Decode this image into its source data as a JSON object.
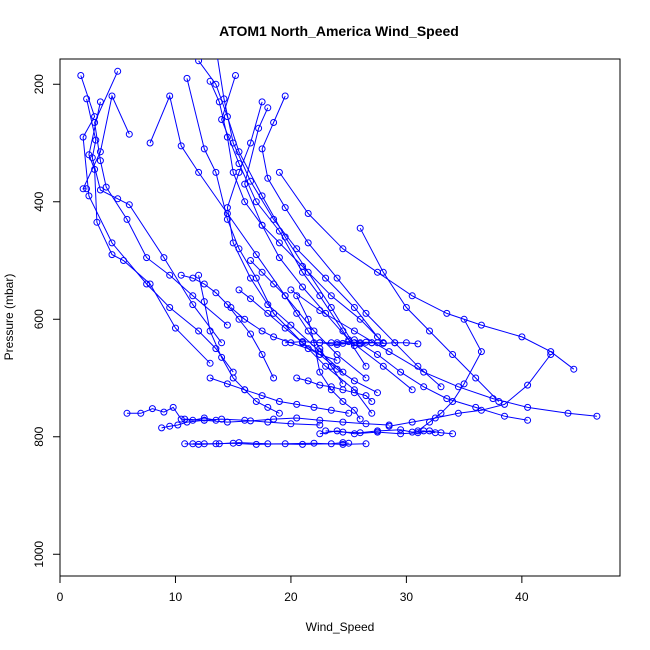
{
  "chart_data": {
    "type": "scatter",
    "title": "ATOM1 North_America Wind_Speed",
    "xlabel": "Wind_Speed",
    "ylabel": "Pressure (mbar)",
    "xlim": [
      0,
      48.5
    ],
    "ylim": [
      1037,
      157
    ],
    "y_reversed": true,
    "x_ticks": [
      0,
      10,
      20,
      30,
      40
    ],
    "y_ticks": [
      200,
      400,
      600,
      800,
      1000
    ],
    "grid": false,
    "series_color": "#0000ff",
    "marker": "open-circle",
    "connected": true,
    "series": [
      {
        "x": [
          1.8,
          3.0,
          2.0,
          2.5,
          4.5,
          7.5,
          9.5,
          12.0,
          13.5,
          15.0
        ],
        "y": [
          185,
          255,
          290,
          390,
          470,
          540,
          580,
          620,
          650,
          690
        ]
      },
      {
        "x": [
          2.3,
          3.1,
          2.8,
          3.5,
          5.0,
          6.0,
          9.0,
          11.5,
          14.0
        ],
        "y": [
          225,
          295,
          325,
          380,
          395,
          405,
          495,
          575,
          640
        ]
      },
      {
        "x": [
          3.5,
          2.5,
          3.0,
          3.2,
          4.5,
          5.5,
          7.8,
          10.0,
          13.0
        ],
        "y": [
          230,
          320,
          345,
          435,
          490,
          500,
          540,
          615,
          675
        ]
      },
      {
        "x": [
          6.0,
          4.5,
          3.5,
          2.0,
          2.3
        ],
        "y": [
          285,
          220,
          315,
          378,
          378
        ]
      },
      {
        "x": [
          5.0,
          3.0,
          3.5,
          4.0,
          5.8,
          7.5,
          9.5,
          11.5,
          14.5
        ],
        "y": [
          178,
          265,
          330,
          375,
          430,
          495,
          525,
          560,
          610
        ]
      },
      {
        "x": [
          7.8,
          9.5,
          10.5,
          12.0,
          14.5,
          17.0,
          19.5,
          22.0,
          24.0,
          26.5
        ],
        "y": [
          300,
          220,
          305,
          350,
          420,
          490,
          560,
          620,
          660,
          700
        ]
      },
      {
        "x": [
          11.0,
          12.5,
          13.5,
          14.5,
          15.5,
          17.0,
          18.5,
          21.0,
          23.0,
          25.5,
          27.0
        ],
        "y": [
          190,
          310,
          350,
          430,
          480,
          530,
          590,
          640,
          680,
          720,
          760
        ]
      },
      {
        "x": [
          13.0,
          13.8,
          14.5,
          15.0,
          16.0,
          17.5,
          19.0,
          21.0,
          23.5,
          26.0,
          28.0
        ],
        "y": [
          195,
          230,
          290,
          350,
          400,
          440,
          470,
          510,
          560,
          600,
          640
        ]
      },
      {
        "x": [
          13.2,
          14.2,
          15.0,
          16.5,
          18.5,
          20.5,
          23.0,
          25.5,
          27.5
        ],
        "y": [
          100,
          225,
          300,
          365,
          430,
          480,
          530,
          580,
          630
        ]
      },
      {
        "x": [
          15.2,
          14.0,
          15.5,
          17.0,
          19.0,
          21.0,
          22.5,
          24.5,
          26.5
        ],
        "y": [
          185,
          260,
          335,
          400,
          450,
          520,
          560,
          620,
          680
        ]
      },
      {
        "x": [
          17.5,
          16.5,
          15.5,
          14.5,
          15.0,
          16.5,
          18.0,
          20.0,
          22.5,
          24.5
        ],
        "y": [
          230,
          300,
          350,
          410,
          470,
          530,
          575,
          610,
          655,
          690
        ]
      },
      {
        "x": [
          18.0,
          17.2,
          16.0,
          17.5,
          19.0,
          21.0,
          23.0,
          25.0,
          28.0,
          30.5
        ],
        "y": [
          240,
          275,
          370,
          440,
          495,
          545,
          590,
          635,
          680,
          720
        ]
      },
      {
        "x": [
          19.5,
          18.5,
          17.5,
          18.0,
          19.5,
          21.5,
          24.0,
          26.5,
          29.0,
          31.0,
          33.0
        ],
        "y": [
          220,
          265,
          310,
          360,
          410,
          470,
          530,
          590,
          640,
          680,
          715
        ]
      },
      {
        "x": [
          12.0,
          13.5,
          14.5,
          15.5,
          17.5,
          19.5,
          21.5,
          23.5,
          25.5
        ],
        "y": [
          160,
          200,
          255,
          315,
          390,
          460,
          520,
          580,
          645
        ]
      },
      {
        "x": [
          19.0,
          21.5,
          24.5,
          27.5,
          30.5,
          33.5,
          36.5,
          40.0,
          42.5,
          44.5
        ],
        "y": [
          350,
          420,
          480,
          520,
          560,
          590,
          610,
          630,
          655,
          685
        ]
      },
      {
        "x": [
          20.0,
          22.5,
          25.5,
          28.5,
          31.5,
          34.5,
          37.5,
          40.5,
          44.0,
          46.5
        ],
        "y": [
          550,
          585,
          620,
          655,
          690,
          715,
          735,
          750,
          760,
          765
        ]
      },
      {
        "x": [
          26.0,
          28.0,
          30.0,
          32.0,
          34.0,
          36.0,
          38.0
        ],
        "y": [
          445,
          520,
          580,
          620,
          660,
          700,
          740
        ]
      },
      {
        "x": [
          25.5,
          27.5,
          29.5,
          31.5,
          33.5,
          36.0,
          38.5,
          40.5
        ],
        "y": [
          635,
          660,
          690,
          715,
          735,
          750,
          765,
          772
        ]
      },
      {
        "x": [
          35.0,
          36.5,
          35.0,
          34.0,
          33.0,
          32.0,
          31.0
        ],
        "y": [
          600,
          655,
          710,
          740,
          760,
          775,
          790
        ]
      },
      {
        "x": [
          42.5,
          40.5,
          38.5,
          36.5,
          34.5,
          32.5,
          30.5,
          28.5
        ],
        "y": [
          660,
          712,
          745,
          755,
          760,
          768,
          775,
          782
        ]
      },
      {
        "x": [
          10.8,
          12.5,
          14.5,
          16.5,
          18.5,
          20.5,
          22.5,
          24.5,
          26.5,
          28.5
        ],
        "y": [
          770,
          772,
          775,
          773,
          770,
          768,
          772,
          775,
          778,
          780
        ]
      },
      {
        "x": [
          8.8,
          9.5,
          10.2,
          11.0,
          12.5,
          14.0,
          16.0,
          18.0,
          20.0,
          22.5
        ],
        "y": [
          785,
          782,
          780,
          775,
          772,
          770,
          772,
          775,
          778,
          780
        ]
      },
      {
        "x": [
          5.8,
          7.0,
          8.0,
          9.0,
          9.8,
          10.5,
          11.5,
          12.5,
          13.5
        ],
        "y": [
          760,
          760,
          752,
          758,
          750,
          770,
          772,
          768,
          772
        ]
      },
      {
        "x": [
          10.8,
          12.0,
          13.5,
          15.0,
          17.0,
          19.5,
          22.0,
          24.5,
          26.5
        ],
        "y": [
          812,
          813,
          812,
          811,
          813,
          812,
          811,
          813,
          812
        ]
      },
      {
        "x": [
          11.5,
          12.5,
          13.8,
          15.5,
          18.0,
          21.0,
          23.5,
          24.5,
          25.0
        ],
        "y": [
          812,
          812,
          812,
          810,
          812,
          813,
          812,
          810,
          811
        ]
      },
      {
        "x": [
          22.5,
          24.0,
          25.5,
          27.5,
          29.5,
          31.0,
          32.0,
          33.0,
          34.0
        ],
        "y": [
          795,
          790,
          795,
          792,
          795,
          793,
          790,
          793,
          795
        ]
      },
      {
        "x": [
          23.0,
          24.5,
          26.0,
          27.5,
          29.5,
          30.5,
          31.5,
          32.5
        ],
        "y": [
          790,
          792,
          793,
          790,
          788,
          792,
          790,
          793
        ]
      },
      {
        "x": [
          24.0,
          25.0,
          26.0,
          27.0,
          28.0,
          29.0,
          30.0,
          31.0
        ],
        "y": [
          640,
          638,
          640,
          640,
          641,
          640,
          640,
          642
        ]
      },
      {
        "x": [
          22.5,
          23.5,
          24.5,
          25.5,
          26.5,
          27.5,
          28.0
        ],
        "y": [
          640,
          640,
          641,
          640,
          639,
          640,
          640
        ]
      },
      {
        "x": [
          19.5,
          21.0,
          22.5,
          24.0,
          25.5,
          26.0,
          27.0
        ],
        "y": [
          640,
          638,
          640,
          643,
          640,
          642,
          640
        ]
      },
      {
        "x": [
          14.8,
          16.0,
          17.5,
          18.5,
          20.0,
          21.5,
          22.5,
          24.0
        ],
        "y": [
          580,
          600,
          620,
          630,
          640,
          650,
          660,
          670
        ]
      },
      {
        "x": [
          15.5,
          16.5,
          18.0,
          19.5,
          21.0,
          22.5,
          24.0,
          25.5,
          27.5
        ],
        "y": [
          550,
          565,
          590,
          615,
          640,
          660,
          685,
          705,
          725
        ]
      },
      {
        "x": [
          10.5,
          11.5,
          12.5,
          13.5,
          14.5,
          15.5,
          16.5,
          17.5,
          18.5
        ],
        "y": [
          525,
          530,
          540,
          555,
          575,
          600,
          625,
          660,
          700
        ]
      },
      {
        "x": [
          12.0,
          12.5,
          13.0,
          14.0,
          15.0,
          16.0,
          17.0,
          18.0,
          19.0
        ],
        "y": [
          525,
          570,
          620,
          665,
          700,
          720,
          740,
          750,
          760
        ]
      },
      {
        "x": [
          16.5,
          17.5,
          18.5,
          19.5,
          20.5,
          21.5,
          22.5,
          23.5,
          24.5
        ],
        "y": [
          500,
          520,
          540,
          560,
          590,
          620,
          650,
          680,
          710
        ]
      },
      {
        "x": [
          20.5,
          21.5,
          22.5,
          23.5,
          24.5,
          25.5,
          26.5,
          27.0
        ],
        "y": [
          700,
          705,
          712,
          715,
          720,
          725,
          730,
          740
        ]
      },
      {
        "x": [
          13.0,
          14.5,
          16.0,
          17.5,
          19.0,
          20.5,
          22.0,
          23.5,
          25.0
        ],
        "y": [
          700,
          710,
          720,
          730,
          740,
          745,
          750,
          755,
          760
        ]
      },
      {
        "x": [
          20.5,
          21.5,
          22.0,
          22.5,
          23.5,
          24.5,
          25.5,
          26.0
        ],
        "y": [
          560,
          600,
          640,
          690,
          720,
          740,
          755,
          770
        ]
      }
    ]
  }
}
